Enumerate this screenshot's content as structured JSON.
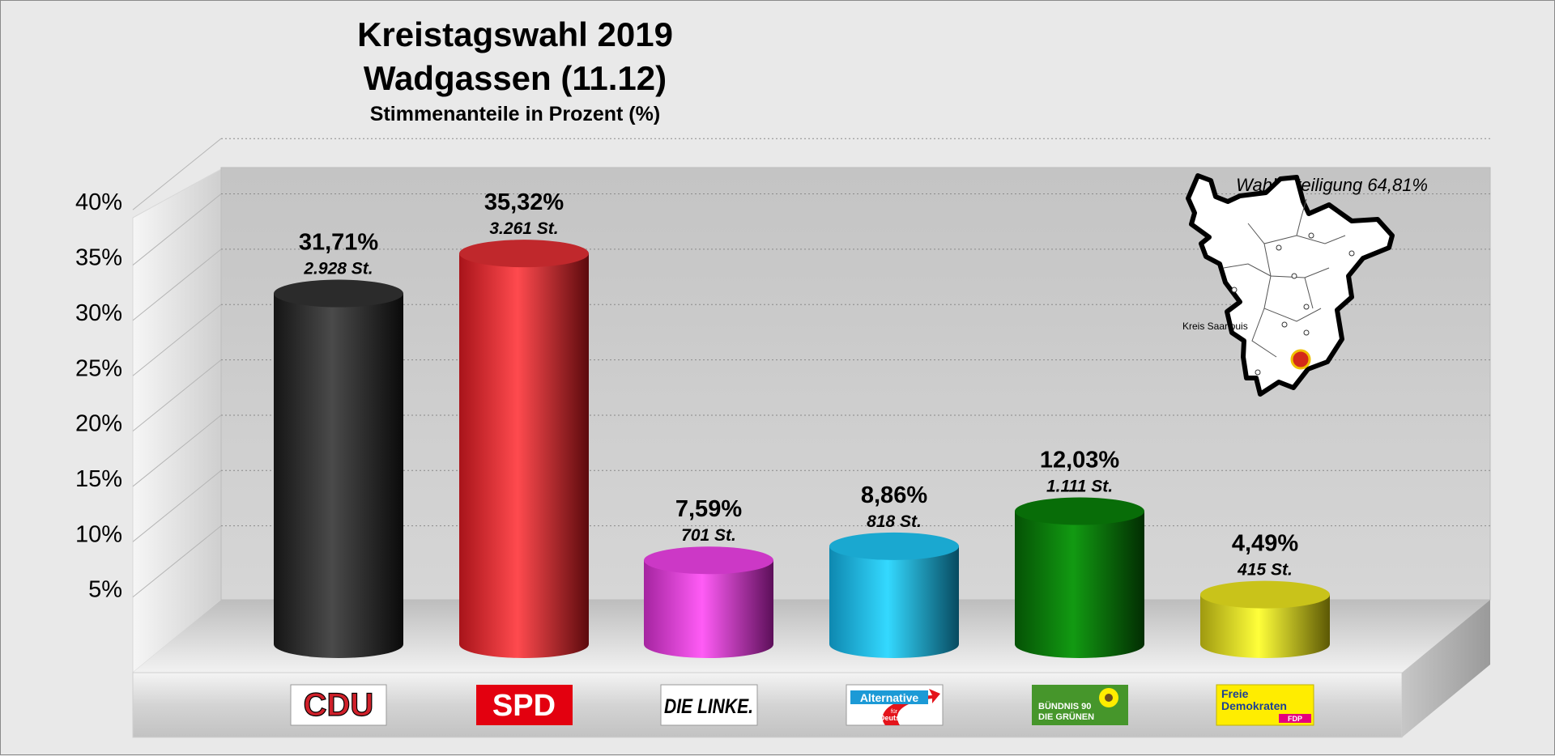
{
  "title": "Kreistagswahl 2019",
  "subtitle": "Wadgassen (11.12)",
  "caption": "Stimmenanteile in Prozent (%)",
  "turnout_label": "Wahlbeteiligung 64,81%",
  "map_label": "Kreis Saarlouis",
  "chart_data": {
    "type": "bar",
    "title": "Kreistagswahl 2019",
    "subtitle": "Wadgassen (11.12)",
    "ylabel": "",
    "ylim": [
      0,
      40
    ],
    "yticks": [
      "5%",
      "10%",
      "15%",
      "20%",
      "25%",
      "30%",
      "35%",
      "40%"
    ],
    "grid": true,
    "categories": [
      "CDU",
      "SPD",
      "DIE LINKE.",
      "AfD",
      "BÜNDNIS 90 DIE GRÜNEN",
      "FDP"
    ],
    "values": [
      31.71,
      35.32,
      7.59,
      8.86,
      12.03,
      4.49
    ],
    "value_labels": [
      "31,71%",
      "35,32%",
      "7,59%",
      "8,86%",
      "12,03%",
      "4,49%"
    ],
    "votes": [
      "2.928 St.",
      "3.261 St.",
      "701 St.",
      "818 St.",
      "1.111 St.",
      "415 St."
    ],
    "colors": [
      "#333333",
      "#e0262a",
      "#e43cd8",
      "#1eb8e2",
      "#0a7d0a",
      "#e5e020"
    ]
  },
  "logos": {
    "cdu": "CDU",
    "spd": "SPD",
    "linke": "DIE LINKE.",
    "afd_top": "Alternative",
    "afd_sub1": "für",
    "afd_sub2": "Deutschland",
    "gruene_1": "BÜNDNIS 90",
    "gruene_2": "DIE GRÜNEN",
    "fdp_1": "Freie",
    "fdp_2": "Demokraten",
    "fdp_3": "FDP"
  }
}
